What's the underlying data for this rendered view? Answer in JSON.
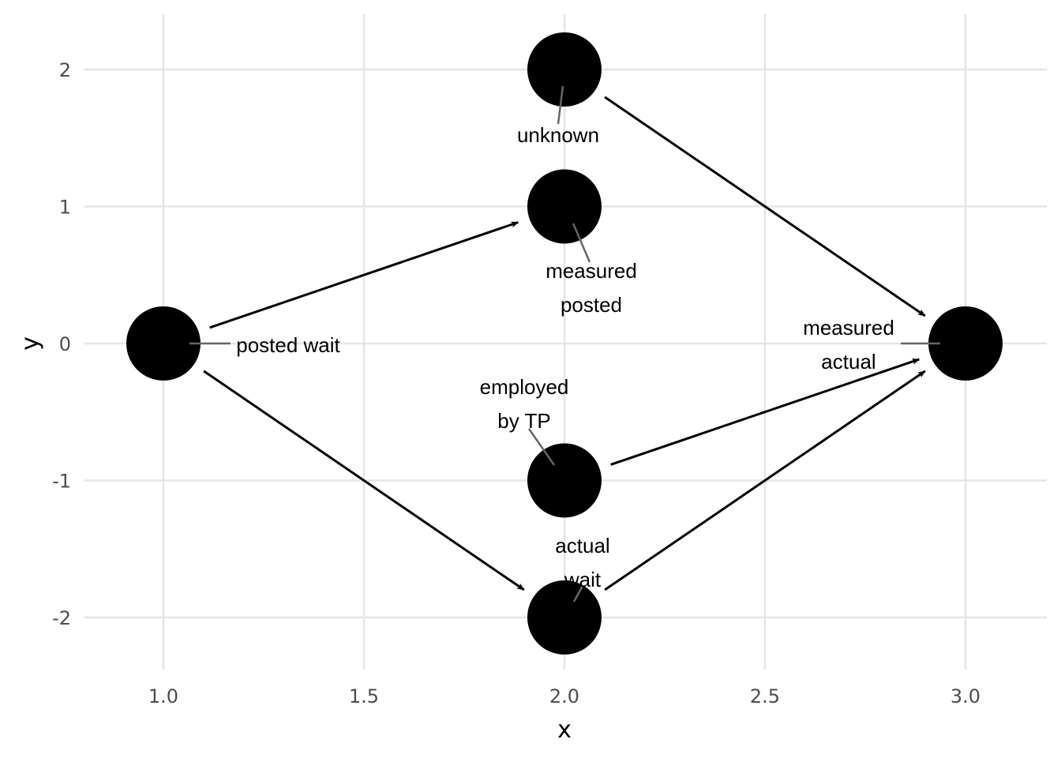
{
  "diagram": {
    "type": "dag",
    "x_axis": {
      "label": "x",
      "ticks": [
        "1.0",
        "1.5",
        "2.0",
        "2.5",
        "3.0"
      ],
      "range": [
        0.8,
        3.2
      ]
    },
    "y_axis": {
      "label": "y",
      "ticks": [
        "-2",
        "-1",
        "0",
        "1",
        "2"
      ],
      "range": [
        -2.4,
        2.4
      ]
    },
    "nodes": [
      {
        "id": "posted_wait",
        "x": 1,
        "y": 0,
        "label": [
          "posted wait"
        ]
      },
      {
        "id": "measured_posted",
        "x": 2,
        "y": 1,
        "label": [
          "measured",
          "posted"
        ]
      },
      {
        "id": "unknown",
        "x": 2,
        "y": 2,
        "label": [
          "unknown"
        ]
      },
      {
        "id": "employed_by_tp",
        "x": 2,
        "y": -1,
        "label": [
          "employed",
          "by TP"
        ]
      },
      {
        "id": "actual_wait",
        "x": 2,
        "y": -2,
        "label": [
          "actual",
          "wait"
        ]
      },
      {
        "id": "measured_actual",
        "x": 3,
        "y": 0,
        "label": [
          "measured",
          "actual"
        ]
      }
    ],
    "edges": [
      {
        "from": "posted_wait",
        "to": "measured_posted"
      },
      {
        "from": "posted_wait",
        "to": "actual_wait"
      },
      {
        "from": "unknown",
        "to": "measured_actual"
      },
      {
        "from": "employed_by_tp",
        "to": "measured_actual"
      },
      {
        "from": "actual_wait",
        "to": "measured_actual"
      }
    ]
  }
}
